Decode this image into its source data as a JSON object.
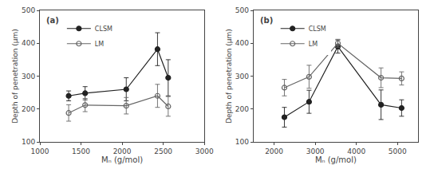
{
  "chart_data": [
    {
      "type": "line",
      "annotations": [
        "(a)"
      ],
      "xlabel": "Mₙ (g/mol)",
      "ylabel": "Depth of penetration (μm)",
      "xlim": [
        1000,
        3000
      ],
      "ylim": [
        100,
        500
      ],
      "xticks": [
        1000,
        1500,
        2000,
        2500,
        3000
      ],
      "yticks": [
        100,
        200,
        300,
        400,
        500
      ],
      "grid": false,
      "legend": "upper left",
      "series": [
        {
          "name": "CLSM",
          "color": "#222222",
          "marker": "circle",
          "x": [
            1350,
            1550,
            2050,
            2430,
            2560
          ],
          "values": [
            240,
            248,
            260,
            382,
            295
          ],
          "yerr": [
            15,
            20,
            35,
            50,
            55
          ]
        },
        {
          "name": "LM",
          "color": "#666666",
          "marker": "circle-open",
          "x": [
            1350,
            1550,
            2050,
            2430,
            2560
          ],
          "values": [
            188,
            212,
            210,
            240,
            208
          ],
          "yerr": [
            25,
            20,
            25,
            35,
            30
          ]
        }
      ]
    },
    {
      "type": "line",
      "annotations": [
        "(b)"
      ],
      "xlabel": "Mₙ (g/mol)",
      "ylabel": "Depth of penetration (μm)",
      "xlim": [
        1500,
        5500
      ],
      "ylim": [
        100,
        500
      ],
      "xticks": [
        2000,
        3000,
        4000,
        5000
      ],
      "yticks": [
        100,
        200,
        300,
        400,
        500
      ],
      "grid": false,
      "legend": "upper left",
      "series": [
        {
          "name": "CLSM",
          "color": "#222222",
          "marker": "circle",
          "x": [
            2250,
            2850,
            3550,
            4600,
            5100
          ],
          "values": [
            175,
            222,
            390,
            213,
            203
          ],
          "yerr": [
            30,
            35,
            20,
            45,
            25
          ]
        },
        {
          "name": "LM",
          "color": "#666666",
          "marker": "circle-open",
          "x": [
            2250,
            2850,
            3550,
            4600,
            5100
          ],
          "values": [
            265,
            298,
            400,
            295,
            293
          ],
          "yerr": [
            25,
            35,
            12,
            30,
            20
          ]
        }
      ]
    }
  ]
}
